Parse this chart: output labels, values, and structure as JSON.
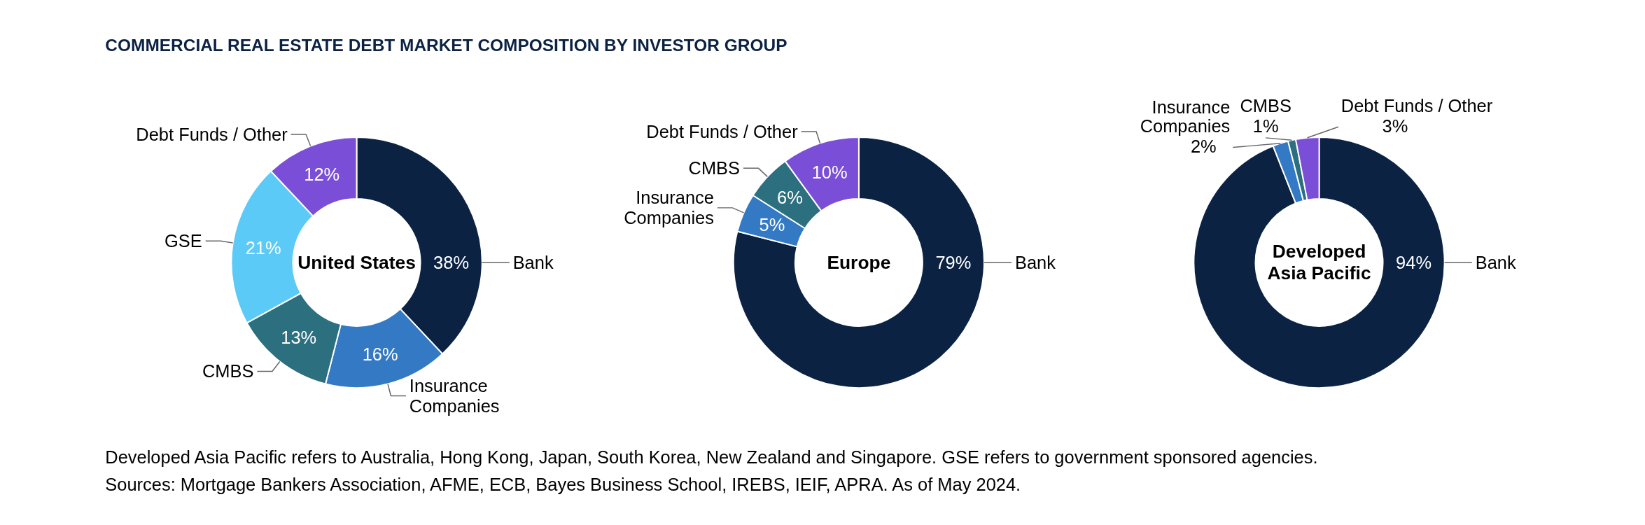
{
  "chart_data": [
    {
      "type": "other",
      "title": "COMMERCIAL REAL ESTATE DEBT MARKET COMPOSITION BY INVESTOR GROUP",
      "annotations": [
        "Developed Asia Pacific refers to Australia, Hong Kong, Japan, South Korea, New Zealand and Singapore. GSE refers to government sponsored agencies.",
        "Sources: Mortgage Bankers Association, AFME, ECB, Bayes Business School, IREBS, IEIF, APRA. As of May 2024."
      ]
    },
    {
      "type": "donut",
      "title": "United States",
      "categories": [
        "Bank",
        "Insurance Companies",
        "CMBS",
        "GSE",
        "Debt Funds / Other"
      ],
      "values": [
        38,
        16,
        13,
        21,
        12
      ],
      "value_labels": [
        "38%",
        "16%",
        "13%",
        "21%",
        "12%"
      ],
      "colors": [
        "#0b2243",
        "#3479c4",
        "#2c6f7f",
        "#5ccaf6",
        "#7b4ed8"
      ]
    },
    {
      "type": "donut",
      "title": "Europe",
      "categories": [
        "Bank",
        "Insurance Companies",
        "CMBS",
        "Debt Funds / Other"
      ],
      "values": [
        79,
        5,
        6,
        10
      ],
      "value_labels": [
        "79%",
        "5%",
        "6%",
        "10%"
      ],
      "colors": [
        "#0b2243",
        "#3479c4",
        "#2c6f7f",
        "#7b4ed8"
      ]
    },
    {
      "type": "donut",
      "title": "Developed Asia Pacific",
      "categories": [
        "Bank",
        "Insurance Companies",
        "CMBS",
        "Debt Funds / Other"
      ],
      "values": [
        94,
        2,
        1,
        3
      ],
      "value_labels": [
        "94%",
        "2%",
        "1%",
        "3%"
      ],
      "colors": [
        "#0b2243",
        "#3479c4",
        "#2c6f7f",
        "#7b4ed8"
      ]
    }
  ]
}
